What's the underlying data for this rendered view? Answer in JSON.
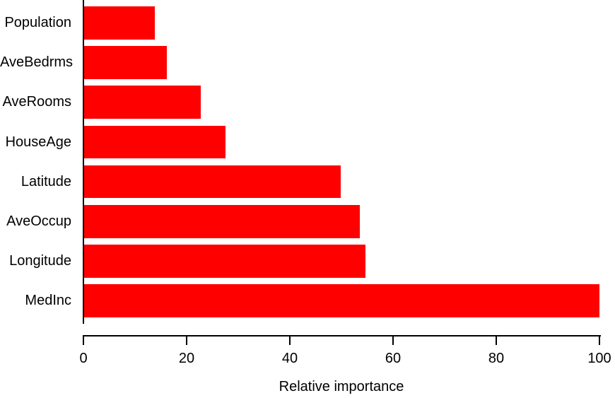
{
  "chart_data": {
    "type": "bar",
    "orientation": "horizontal",
    "title": "",
    "xlabel": "Relative importance",
    "ylabel": "",
    "categories_order": "top-to-bottom",
    "categories": [
      "Population",
      "AveBedrms",
      "AveRooms",
      "HouseAge",
      "Latitude",
      "AveOccup",
      "Longitude",
      "MedInc"
    ],
    "values": [
      13.8,
      16.2,
      22.7,
      27.5,
      49.9,
      53.6,
      54.7,
      100
    ],
    "xlim": [
      0,
      100
    ],
    "xticks": [
      "0",
      "20",
      "40",
      "60",
      "80",
      "100"
    ],
    "xtick_values": [
      0,
      20,
      40,
      60,
      80,
      100
    ],
    "grid": false,
    "legend": "none",
    "bar_color": "#ff0000",
    "axis_color": "#000000",
    "text_color": "#000000",
    "background_color": "#ffffff"
  }
}
